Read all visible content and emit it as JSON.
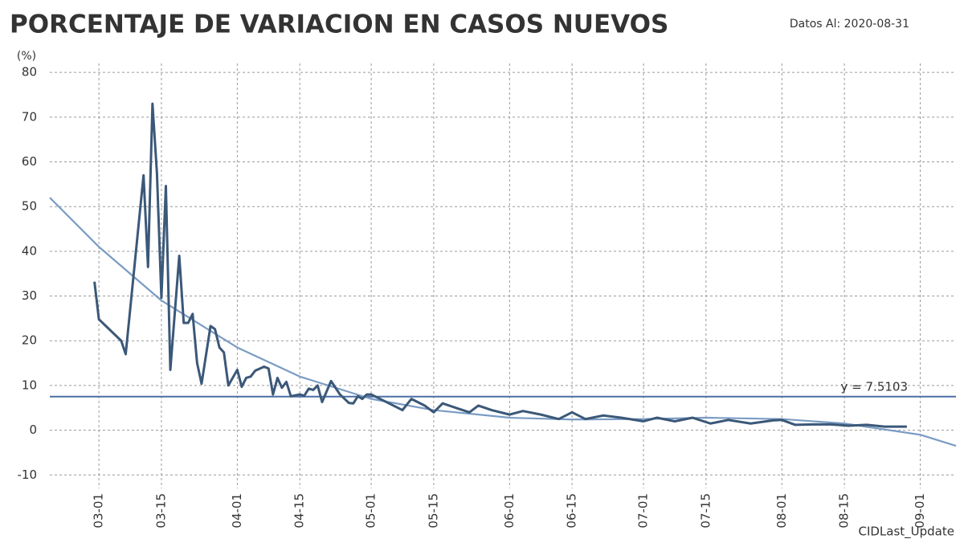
{
  "chart_data": {
    "type": "line",
    "title": "PORCENTAJE DE VARIACION EN CASOS NUEVOS",
    "subtitle": "Datos Al: 2020-08-31",
    "y_label": "(%)",
    "x_label": "CIDLast_Update",
    "xlim": [
      "02-19",
      "09-09"
    ],
    "xticks": [
      "03-01",
      "03-15",
      "04-01",
      "04-15",
      "05-01",
      "05-15",
      "06-01",
      "06-15",
      "07-01",
      "07-15",
      "08-01",
      "08-15",
      "09-01"
    ],
    "ylim": [
      -13,
      82
    ],
    "yticks": [
      -10,
      0,
      10,
      20,
      30,
      40,
      50,
      60,
      70,
      80
    ],
    "grid": true,
    "hline": {
      "value": 7.5103,
      "label": "y = 7.5103",
      "color": "#4a6fa5"
    },
    "series": [
      {
        "color": "#3b5878",
        "x": [
          "02-29",
          "03-01",
          "03-06",
          "03-07",
          "03-11",
          "03-12",
          "03-13",
          "03-14",
          "03-15",
          "03-16",
          "03-17",
          "03-19",
          "03-20",
          "03-21",
          "03-22",
          "03-23",
          "03-24",
          "03-26",
          "03-27",
          "03-28",
          "03-29",
          "03-30",
          "04-01",
          "04-02",
          "04-03",
          "04-04",
          "04-05",
          "04-07",
          "04-08",
          "04-09",
          "04-10",
          "04-11",
          "04-12",
          "04-13",
          "04-15",
          "04-16",
          "04-17",
          "04-18",
          "04-19",
          "04-20",
          "04-22",
          "04-24",
          "04-26",
          "04-27",
          "04-28",
          "04-29",
          "04-30",
          "05-01",
          "05-05",
          "05-08",
          "05-10",
          "05-13",
          "05-15",
          "05-17",
          "05-20",
          "05-23",
          "05-25",
          "05-28",
          "06-01",
          "06-04",
          "06-08",
          "06-12",
          "06-15",
          "06-18",
          "06-22",
          "06-26",
          "07-01",
          "07-04",
          "07-08",
          "07-12",
          "07-16",
          "07-20",
          "07-25",
          "07-30",
          "08-01",
          "08-04",
          "08-08",
          "08-12",
          "08-16",
          "08-20",
          "08-24",
          "08-29"
        ],
        "values": [
          33.2,
          24.8,
          20,
          17,
          57,
          36.5,
          73,
          57.5,
          29.6,
          54.6,
          13.5,
          39,
          24,
          24,
          26,
          15,
          10.4,
          23.3,
          22.6,
          18.5,
          17.4,
          10,
          13.5,
          9.7,
          11.7,
          12,
          13.3,
          14.2,
          13.8,
          8,
          11.7,
          9.5,
          10.8,
          7.6,
          8,
          7.7,
          9.3,
          9,
          10,
          6.3,
          11,
          8,
          6.1,
          6,
          7.6,
          7,
          8,
          8,
          6,
          4.5,
          7,
          5.5,
          4,
          6,
          5,
          4,
          5.5,
          4.5,
          3.5,
          4.3,
          3.5,
          2.5,
          4,
          2.5,
          3.3,
          2.8,
          2,
          2.8,
          2,
          2.8,
          1.5,
          2.3,
          1.5,
          2.2,
          2.3,
          1.2,
          1.3,
          1.3,
          1,
          1.2,
          0.8,
          0.8
        ]
      },
      {
        "color": "#7a9cc4",
        "x": [
          "02-19",
          "03-01",
          "03-15",
          "04-01",
          "04-15",
          "05-01",
          "05-15",
          "06-01",
          "06-15",
          "07-01",
          "07-15",
          "08-01",
          "08-15",
          "09-01",
          "09-09"
        ],
        "values": [
          52,
          41,
          29,
          18.5,
          12,
          7,
          4.5,
          2.8,
          2.4,
          2.5,
          2.8,
          2.5,
          1.5,
          -1,
          -3.5
        ]
      }
    ]
  }
}
